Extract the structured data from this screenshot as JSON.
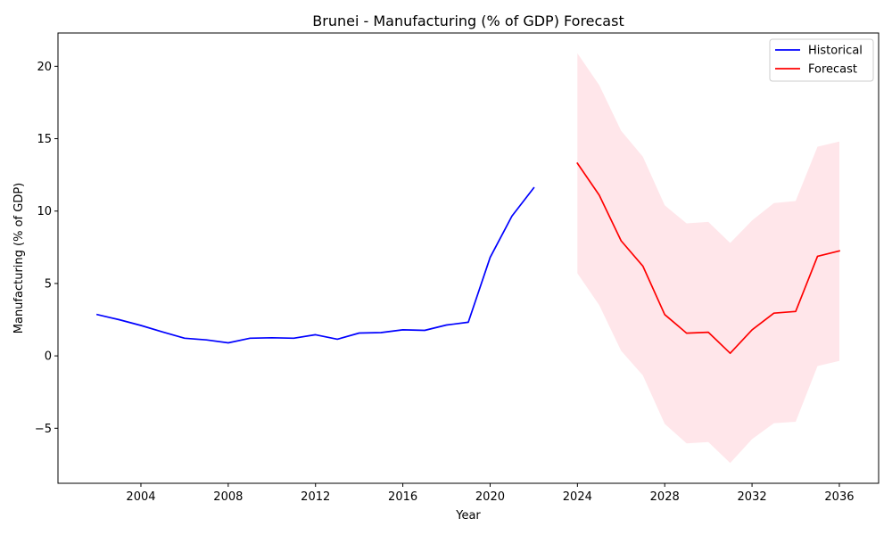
{
  "chart_data": {
    "type": "line",
    "title": "Brunei - Manufacturing (% of GDP) Forecast",
    "xlabel": "Year",
    "ylabel": "Manufacturing (% of GDP)",
    "xlim": [
      2000.2,
      2037.8
    ],
    "ylim": [
      -8.8,
      22.3
    ],
    "xticks": [
      2004,
      2008,
      2012,
      2016,
      2020,
      2024,
      2028,
      2032,
      2036
    ],
    "yticks": [
      -5,
      0,
      5,
      10,
      15,
      20
    ],
    "ytick_labels": [
      "−5",
      "0",
      "5",
      "10",
      "15",
      "20"
    ],
    "grid": false,
    "legend_position": "top-right",
    "series": [
      {
        "name": "Historical",
        "color": "#0000ff",
        "x": [
          2002,
          2003,
          2004,
          2005,
          2006,
          2007,
          2008,
          2009,
          2010,
          2011,
          2012,
          2013,
          2014,
          2015,
          2016,
          2017,
          2018,
          2019,
          2020,
          2021,
          2022
        ],
        "y": [
          2.85,
          2.5,
          2.1,
          1.65,
          1.22,
          1.1,
          0.9,
          1.22,
          1.25,
          1.22,
          1.46,
          1.15,
          1.58,
          1.61,
          1.8,
          1.76,
          2.13,
          2.32,
          6.8,
          9.65,
          11.6
        ]
      },
      {
        "name": "Forecast",
        "color": "#ff0000",
        "x": [
          2024,
          2025,
          2026,
          2027,
          2028,
          2029,
          2030,
          2031,
          2032,
          2033,
          2034,
          2035,
          2036
        ],
        "y": [
          13.3,
          11.1,
          7.95,
          6.2,
          2.85,
          1.57,
          1.63,
          0.18,
          1.8,
          2.95,
          3.07,
          6.88,
          7.25
        ]
      }
    ],
    "confidence_band": {
      "color": "#ffc0cb",
      "x": [
        2024,
        2025,
        2026,
        2027,
        2028,
        2029,
        2030,
        2031,
        2032,
        2033,
        2034,
        2035,
        2036
      ],
      "lower": [
        5.7,
        3.5,
        0.35,
        -1.35,
        -4.7,
        -6.05,
        -5.95,
        -7.4,
        -5.75,
        -4.65,
        -4.55,
        -0.7,
        -0.35
      ],
      "upper": [
        20.9,
        18.7,
        15.55,
        13.75,
        10.4,
        9.15,
        9.25,
        7.8,
        9.35,
        10.55,
        10.7,
        14.45,
        14.8
      ]
    }
  }
}
